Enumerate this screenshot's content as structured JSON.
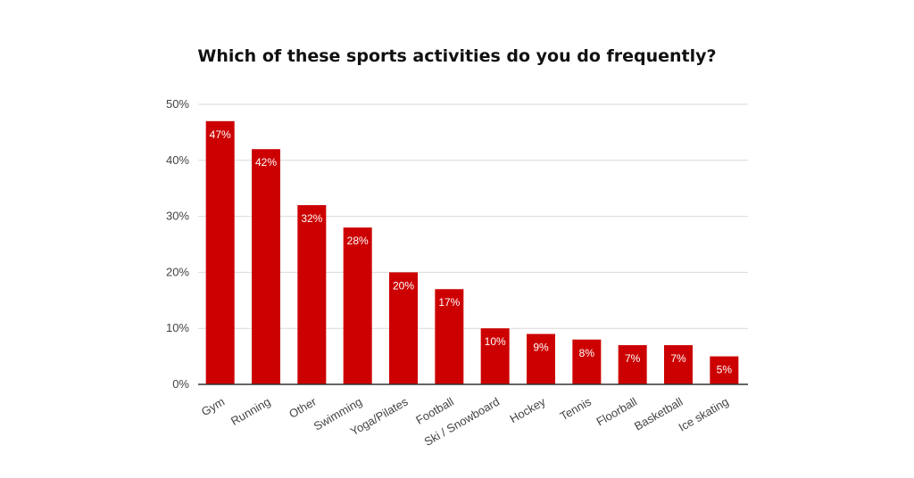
{
  "chart_data": {
    "type": "bar",
    "title": "Which of these sports activities do you do frequently?",
    "xlabel": "",
    "ylabel": "",
    "categories": [
      "Gym",
      "Running",
      "Other",
      "Swimming",
      "Yoga/Pilates",
      "Football",
      "Ski / Snowboard",
      "Hockey",
      "Tennis",
      "Floorball",
      "Basketball",
      "Ice skating"
    ],
    "values": [
      47,
      42,
      32,
      28,
      20,
      17,
      10,
      9,
      8,
      7,
      7,
      5
    ],
    "data_labels": [
      "47%",
      "42%",
      "32%",
      "28%",
      "20%",
      "17%",
      "10%",
      "9%",
      "8%",
      "7%",
      "7%",
      "5%"
    ],
    "ylim": [
      0,
      50
    ],
    "yticks": [
      0,
      10,
      20,
      30,
      40,
      50
    ],
    "ytick_labels": [
      "0%",
      "10%",
      "20%",
      "30%",
      "40%",
      "50%"
    ],
    "grid": true,
    "legend": "none",
    "bar_color": "#cc0000"
  }
}
